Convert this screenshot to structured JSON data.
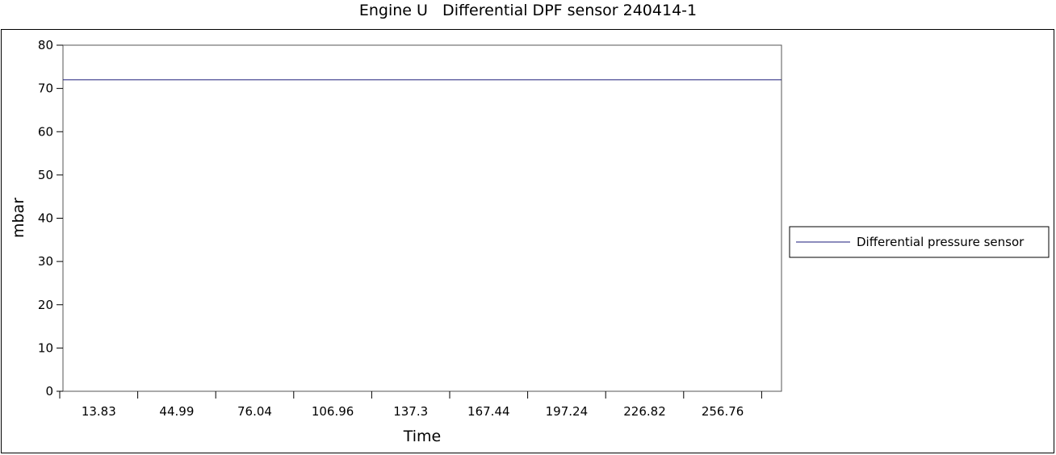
{
  "chart_data": {
    "type": "line",
    "title": "Engine U   Differential DPF sensor 240414-1",
    "xlabel": "Time",
    "ylabel": "mbar",
    "ylim": [
      0,
      80
    ],
    "yticks": [
      0,
      10,
      20,
      30,
      40,
      50,
      60,
      70,
      80
    ],
    "xticks": [
      "13.83",
      "44.99",
      "76.04",
      "106.96",
      "137.3",
      "167.44",
      "197.24",
      "226.82",
      "256.76"
    ],
    "grid": false,
    "legend_position": "right",
    "series": [
      {
        "name": "Differential pressure sensor",
        "color": "#1a1a7a",
        "x": [
          0,
          270
        ],
        "values": [
          72,
          72
        ]
      }
    ]
  }
}
